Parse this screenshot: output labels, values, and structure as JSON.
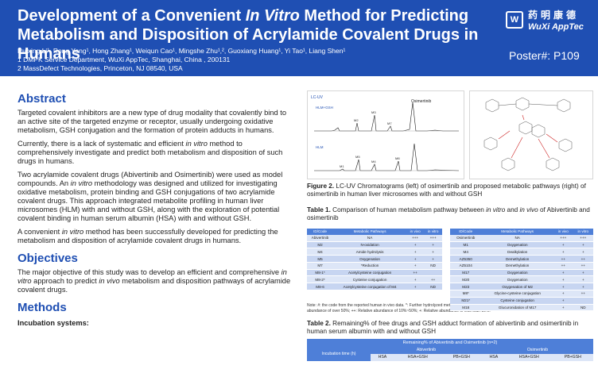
{
  "header": {
    "title_part1": "Development of a Convenient ",
    "title_italic": "In Vitro",
    "title_part2": " Method for Predicting",
    "title_line2": "Metabolism and Disposition of Acrylamide Covalent Drugs in Humans",
    "authors": "Ruixing Li¹, Rong Yang¹, Hong Zhang¹, Weiqun Cao¹, Mingshe Zhu¹,², Guoxiang Huang¹, Yi Tao¹, Liang Shen¹",
    "affiliation1": "1 DMPK Service Department, WuXi AppTec, Shanghai, China , 200131",
    "affiliation2": "2 MassDefect Technologies, Princeton, NJ 08540, USA",
    "logo_cn": "药明康德",
    "logo_en": "WuXi AppTec",
    "poster_number": "Poster#: P109"
  },
  "abstract": {
    "heading": "Abstract",
    "p1": "Targeted covalent inhibitors are a new type of drug modality that covalently bind to an active site of the targeted enzyme or receptor, usually undergoing oxidative metabolism, GSH conjugation and the formation of protein adducts in humans.",
    "p2a": "Currently, there is a lack of systematic and efficient ",
    "p2_it": "in vitro",
    "p2b": " method to comprehensively investigate and predict both metabolism and disposition of such drugs in humans.",
    "p3a": "Two acrylamide covalent drugs (Abivertinib and Osimertinib) were used as model compounds. An ",
    "p3_it": "in vitro",
    "p3b": " methodology was designed and utilized for investigating oxidative metabolism, protein binding and GSH conjugations of two acrylamide covalent drugs. This approach  integrated metabolite profiling in human liver microsomes (HLM) with and without GSH, along with the exploration of  potential covalent binding in human serum albumin (HSA) with and without GSH.",
    "p4a": "A convenient ",
    "p4_it": "in vitro",
    "p4b": " method has been successfully developed for predicting the metabolism and disposition of acrylamide covalent drugs in humans."
  },
  "objectives": {
    "heading": "Objectives",
    "p1a": "The major objective of this study was to develop an efficient and comprehensive ",
    "p1_it1": "in vitro",
    "p1b": " approach to predict ",
    "p1_it2": "in vivo",
    "p1c": " metabolism and disposition pathways of acrylamide covalent drugs."
  },
  "methods": {
    "heading": "Methods",
    "sub1": "Incubation systems:"
  },
  "figure2": {
    "chrom_label": "LC-UV",
    "series_top": "HLM+GSH",
    "series_bottom": "HLM",
    "parent": "Osimertinib",
    "peaks": [
      "M2",
      "M3",
      "M7",
      "M8",
      "M5",
      "M4",
      "M1"
    ],
    "caption_label": "Figure 2.",
    "caption_text": " LC-UV Chromatograms (left) of osimertinib and proposed metabolic pathways (right) of osimertinib in human liver microsomes with and without GSH"
  },
  "table1": {
    "caption_label": "Table 1.",
    "caption_text_a": " Comparison of human metabolism pathway between ",
    "caption_it1": "in vitro",
    "caption_text_b": " and ",
    "caption_it2": "in vivo",
    "caption_text_c": " of Abivertinib and osimertinib",
    "headers": [
      "ID/Code",
      "Metabolic Pathways",
      "in vivo",
      "in vitro"
    ],
    "left_rows": [
      [
        "Abivertinib",
        "NA",
        "+++",
        "+++"
      ],
      [
        "M2",
        "N-oxidation",
        "+",
        "+"
      ],
      [
        "M4",
        "Amide hydrolysis",
        "+",
        "+"
      ],
      [
        "M5",
        "Oxygenation",
        "+",
        "+"
      ],
      [
        "M7",
        "*Reduction",
        "+",
        "ND"
      ],
      [
        "M8-1*",
        "Acetylcysteine conjugation",
        "++",
        ""
      ],
      [
        "M8-2*",
        "Cysteine conjugation",
        "+",
        "++"
      ],
      [
        "M8-6",
        "Acetylcysteine conjugation of M4",
        "+",
        "ND"
      ]
    ],
    "right_rows": [
      [
        "Osimertinib",
        "NA",
        "+++",
        "+++"
      ],
      [
        "M1",
        "Oxygenation",
        "+",
        "+"
      ],
      [
        "M4",
        "Dealkylation",
        "+",
        "+"
      ],
      [
        "AZ5350",
        "Demethylation",
        "++",
        "++"
      ],
      [
        "AZ5104",
        "Demethylation",
        "++",
        "++"
      ],
      [
        "M17",
        "Oxygenation",
        "+",
        "+"
      ],
      [
        "M20",
        "Oxygenation",
        "+",
        "+"
      ],
      [
        "M23",
        "Oxygenation of M2",
        "+",
        "+"
      ],
      [
        "M8*",
        "Glycine-cysteine conjugation",
        "+",
        "++"
      ],
      [
        "M21*",
        "Cysteine conjugation",
        "+",
        ""
      ],
      [
        "M18",
        "Glucuronidation of M17",
        "+",
        "ND"
      ]
    ],
    "note": "Note: #: the code from the reported human in vivo data. *: Further hydrolyzed metabolites of GSH adducts; &: Gut microbiota mediated metabolite, +++: Relative abundance of over 50%; ++: Relative abundance of 10%~50%; +: Relative abundance of less than 10%."
  },
  "table2": {
    "caption_label": "Table 2.",
    "caption_text": " Remaining% of free drugs and GSH adduct formation of abivertinib and osimertinib in human serum albumin with and without GSH",
    "header": "Remaining% of Abivertinib and Osimertinib (n=2)",
    "row_label": "Incubation time (h)",
    "drug1": "Abivertinib",
    "drug2": "Osimertinib",
    "cols": [
      "HSA",
      "HSA+GSH",
      "PB+GSH",
      "HSA",
      "HSA+GSH",
      "PB+GSH"
    ]
  },
  "colors": {
    "header_bg": "#1f4fb3",
    "section_title": "#1f4fb3",
    "table_header": "#4e7fd8"
  }
}
